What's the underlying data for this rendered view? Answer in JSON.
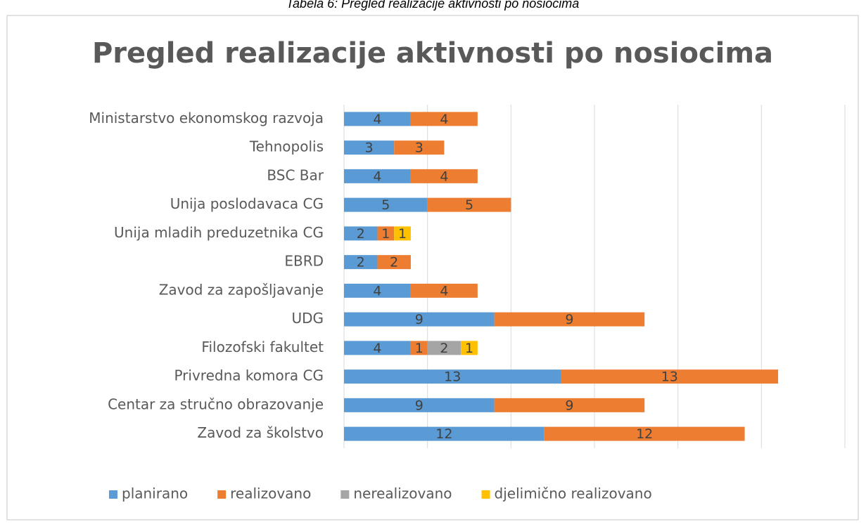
{
  "caption": "Tabela 6: Pregled realizacije aktivnosti po nosiocima",
  "chart_data": {
    "type": "stacked-barh",
    "title": "Pregled realizacije aktivnosti po nosiocima",
    "categories": [
      "Ministarstvo ekonomskog razvoja",
      "Tehnopolis",
      "BSC Bar",
      "Unija poslodavaca CG",
      "Unija mladih preduzetnika CG",
      "EBRD",
      "Zavod za zapošljavanje",
      "UDG",
      "Filozofski fakultet",
      "Privredna komora CG",
      "Centar za stručno obrazovanje",
      "Zavod za školstvo"
    ],
    "series": [
      {
        "name": "planirano",
        "color": "#5b9bd5",
        "values": [
          4,
          3,
          4,
          5,
          2,
          2,
          4,
          9,
          4,
          13,
          9,
          12
        ]
      },
      {
        "name": "realizovano",
        "color": "#ed7d31",
        "values": [
          4,
          3,
          4,
          5,
          1,
          2,
          4,
          9,
          1,
          13,
          9,
          12
        ]
      },
      {
        "name": "nerealizovano",
        "color": "#a5a5a5",
        "values": [
          null,
          null,
          null,
          null,
          null,
          null,
          null,
          null,
          2,
          null,
          null,
          null
        ]
      },
      {
        "name": "djelimično realizovano",
        "color": "#ffc000",
        "values": [
          null,
          null,
          null,
          null,
          1,
          null,
          null,
          null,
          1,
          null,
          null,
          null
        ]
      }
    ],
    "xlim": [
      0,
      30
    ],
    "xticks": [
      0,
      5,
      10,
      15,
      20,
      25,
      30
    ],
    "grid": true,
    "legend": "bottom"
  }
}
